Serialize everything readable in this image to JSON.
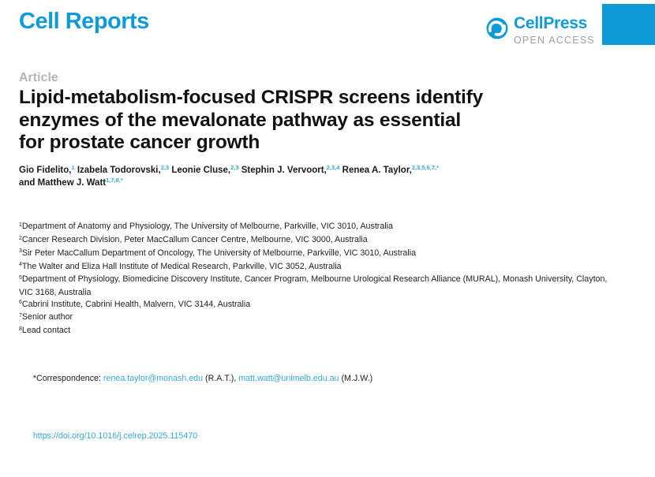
{
  "colors": {
    "brand_blue": "#0f9ad7",
    "link_blue": "#35a8dc",
    "label_gray": "#b2b4b6",
    "open_access_gray": "#9c9ea0",
    "text": "#1a1a1a"
  },
  "header": {
    "journal_logo": "Cell Reports",
    "publisher_logo": "CellPress",
    "open_access": "OPEN ACCESS"
  },
  "article": {
    "label": "Article",
    "title_lines": [
      "Lipid-metabolism-focused CRISPR screens identify",
      "enzymes of the mevalonate pathway as essential",
      "for prostate cancer growth"
    ]
  },
  "authors": [
    {
      "name": "Gio Fidelito,",
      "sup": "1",
      "break_after": false
    },
    {
      "name": "Izabela Todorovski,",
      "sup": "2,3",
      "break_after": false
    },
    {
      "name": "Leonie Cluse,",
      "sup": "2,3",
      "break_after": false
    },
    {
      "name": "Stephin J. Vervoort,",
      "sup": "2,3,4",
      "break_after": false
    },
    {
      "name": "Renea A. Taylor,",
      "sup": "2,3,5,6,7,*",
      "break_after": true
    },
    {
      "name": "and Matthew J. Watt",
      "sup": "1,7,8,*",
      "break_after": false
    }
  ],
  "affiliations": [
    {
      "sup": "1",
      "text": "Department of Anatomy and Physiology, The University of Melbourne, Parkville, VIC 3010, Australia"
    },
    {
      "sup": "2",
      "text": "Cancer Research Division, Peter MacCallum Cancer Centre, Melbourne, VIC 3000, Australia"
    },
    {
      "sup": "3",
      "text": "Sir Peter MacCallum Department of Oncology, The University of Melbourne, Parkville, VIC 3010, Australia"
    },
    {
      "sup": "4",
      "text": "The Walter and Eliza Hall Institute of Medical Research, Parkville, VIC 3052, Australia"
    },
    {
      "sup": "5",
      "text": "Department of Physiology, Biomedicine Discovery Institute, Cancer Program, Melbourne Urological Research Alliance (MURAL), Monash University, Clayton, VIC 3168, Australia"
    },
    {
      "sup": "6",
      "text": "Cabrini Institute, Cabrini Health, Malvern, VIC 3144, Australia"
    },
    {
      "sup": "7",
      "text": "Senior author"
    },
    {
      "sup": "8",
      "text": "Lead contact"
    }
  ],
  "correspondence": {
    "prefix": "*Correspondence: ",
    "email1": "renea.taylor@monash.edu",
    "mid1": " (R.A.T.), ",
    "email2": "matt.watt@unimelb.edu.au",
    "suffix": " (M.J.W.)"
  },
  "doi": "https://doi.org/10.1016/j.celrep.2025.115470"
}
